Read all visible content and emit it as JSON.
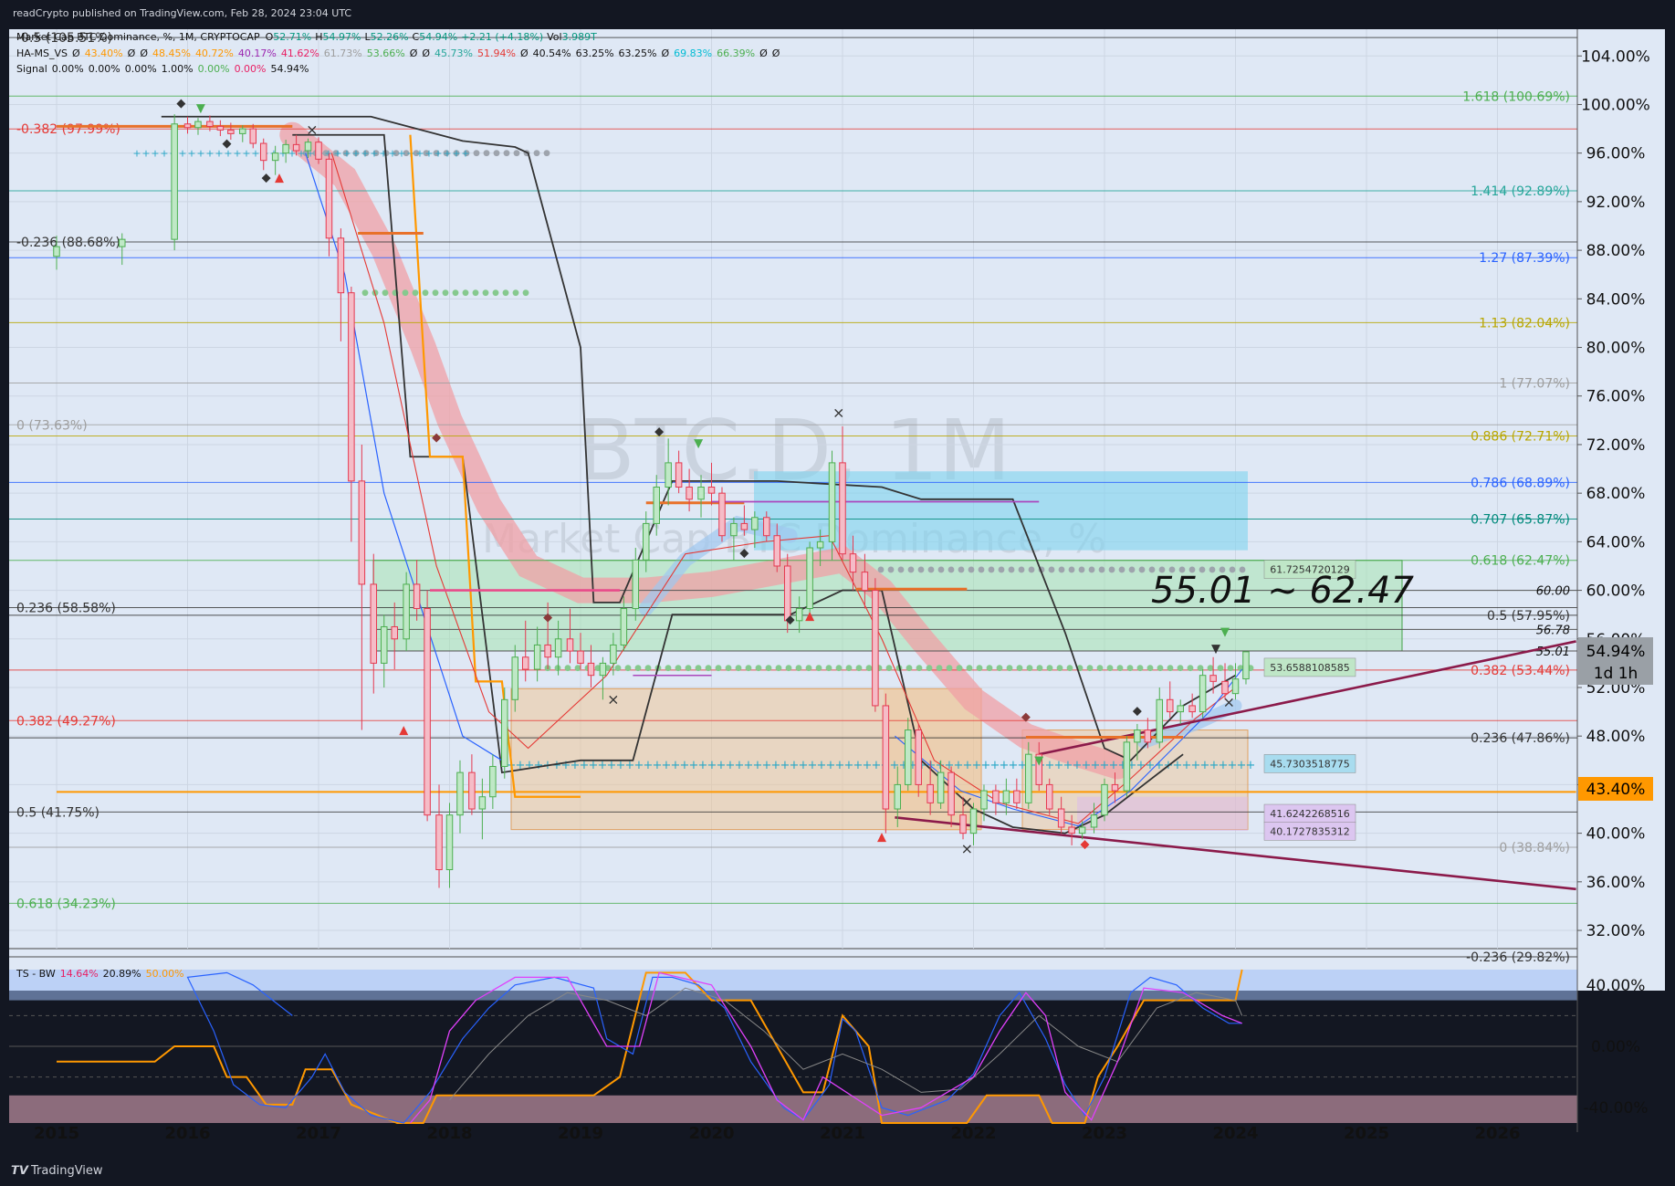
{
  "header": {
    "publisher": "readCrypto published on TradingView.com, Feb 28, 2024 23:04 UTC",
    "symbol_line": "Market Cap BTC Dominance, %, 1M, CRYPTOCAP",
    "ohlc": {
      "o_label": "O",
      "o": "52.71%",
      "h_label": "H",
      "h": "54.97%",
      "l_label": "L",
      "l": "52.26%",
      "c_label": "C",
      "c": "54.94%",
      "chg": "+2.21 (+4.18%)",
      "vol_label": "Vol",
      "vol": "3.989T"
    },
    "ind1_name": "HA-MS_VS",
    "ind1_values": [
      "Ø",
      "43.40%",
      "Ø",
      "Ø",
      "48.45%",
      "40.72%",
      "40.17%",
      "41.62%",
      "61.73%",
      "53.66%",
      "Ø",
      "Ø",
      "45.73%",
      "51.94%",
      "Ø",
      "40.54%",
      "63.25%",
      "63.25%",
      "Ø",
      "69.83%",
      "66.39%",
      "Ø",
      "Ø"
    ],
    "ind2_name": "Signal",
    "ind2_values": [
      "0.00%",
      "0.00%",
      "0.00%",
      "1.00%",
      "0.00%",
      "0.00%",
      "54.94%"
    ],
    "osc_label": "TS - BW",
    "osc_values": [
      "14.64%",
      "20.89%",
      "50.00%"
    ]
  },
  "watermark": {
    "ticker": "BTC.D, 1M",
    "name": "Market Cap BTC Dominance, %"
  },
  "chart_data": {
    "type": "candlestick",
    "symbol": "BTC.D",
    "interval": "1M",
    "y_unit": "%",
    "ylim": [
      30.5,
      106.2
    ],
    "x_ticks": [
      "2015",
      "2016",
      "2017",
      "2018",
      "2019",
      "2020",
      "2021",
      "2022",
      "2023",
      "2024",
      "2025",
      "2026"
    ],
    "y_ticks": [
      "104.00%",
      "100.00%",
      "96.00%",
      "92.00%",
      "88.00%",
      "84.00%",
      "80.00%",
      "76.00%",
      "72.00%",
      "68.00%",
      "64.00%",
      "60.00%",
      "56.00%",
      "52.00%",
      "48.00%",
      "44.00%",
      "40.00%",
      "36.00%",
      "32.00%"
    ],
    "current_price": {
      "value": 54.94,
      "label": "54.94%",
      "countdown": "1d 1h"
    },
    "price_tag_2": {
      "value": 43.4,
      "label": "43.40%"
    },
    "annotation_range": "55.01 ~ 62.47",
    "fib_right": [
      {
        "label": "1.618 (100.69%)",
        "value": 100.69,
        "color": "#4caf50"
      },
      {
        "label": "1.414 (92.89%)",
        "value": 92.89,
        "color": "#26a69a"
      },
      {
        "label": "1.27 (87.39%)",
        "value": 87.39,
        "color": "#2962ff"
      },
      {
        "label": "1.13 (82.04%)",
        "value": 82.04,
        "color": "#b8a600"
      },
      {
        "label": "1 (77.07%)",
        "value": 77.07,
        "color": "#9e9e9e"
      },
      {
        "label": "0.886 (72.71%)",
        "value": 72.71,
        "color": "#b8a600"
      },
      {
        "label": "0.786 (68.89%)",
        "value": 68.89,
        "color": "#2962ff"
      },
      {
        "label": "0.707 (65.87%)",
        "value": 65.87,
        "color": "#00897b"
      },
      {
        "label": "0.618 (62.47%)",
        "value": 62.47,
        "color": "#4caf50"
      },
      {
        "label": "0.5 (57.95%)",
        "value": 57.95,
        "color": "#333333"
      },
      {
        "label": "0.382 (53.44%)",
        "value": 53.44,
        "color": "#e53935"
      },
      {
        "label": "0.236 (47.86%)",
        "value": 47.86,
        "color": "#333333"
      },
      {
        "label": "0 (38.84%)",
        "value": 38.84,
        "color": "#9e9e9e"
      },
      {
        "label": "-0.236 (29.82%)",
        "value": 29.82,
        "color": "#333333"
      }
    ],
    "fib_left": [
      {
        "label": "-0.5 (105.51%)",
        "value": 105.51,
        "color": "#333333"
      },
      {
        "label": "-0.382 (97.99%)",
        "value": 97.99,
        "color": "#e53935"
      },
      {
        "label": "-0.236 (88.68%)",
        "value": 88.68,
        "color": "#333333"
      },
      {
        "label": "0 (73.63%)",
        "value": 73.63,
        "color": "#9e9e9e"
      },
      {
        "label": "0.236 (58.58%)",
        "value": 58.58,
        "color": "#333333"
      },
      {
        "label": "0.382 (49.27%)",
        "value": 49.27,
        "color": "#e53935"
      },
      {
        "label": "0.5 (41.75%)",
        "value": 41.75,
        "color": "#333333"
      },
      {
        "label": "0.618 (34.23%)",
        "value": 34.23,
        "color": "#4caf50"
      }
    ],
    "level_labels": [
      {
        "label": "60.00",
        "value": 60.0
      },
      {
        "label": "56.78",
        "value": 56.78
      },
      {
        "label": "55.01",
        "value": 55.01
      }
    ],
    "box_labels": [
      {
        "label": "61.7254720129",
        "value": 61.7254720129,
        "color": "#bfe6c7"
      },
      {
        "label": "53.6588108585",
        "value": 53.6588108585,
        "color": "#bfe6c7"
      },
      {
        "label": "45.7303518775",
        "value": 45.7303518775,
        "color": "#a8dcef"
      },
      {
        "label": "41.6242268516",
        "value": 41.6242268516,
        "color": "#dcc6f0"
      },
      {
        "label": "40.1727835312",
        "value": 40.1727835312,
        "color": "#dcc6f0"
      }
    ],
    "candles": [
      {
        "t": 2015.0,
        "o": 87.5,
        "h": 89.2,
        "l": 86.4,
        "c": 88.3
      },
      {
        "t": 2015.5,
        "o": 88.3,
        "h": 89.4,
        "l": 86.8,
        "c": 88.9
      },
      {
        "t": 2015.9,
        "o": 88.9,
        "h": 99.2,
        "l": 88.0,
        "c": 98.4
      },
      {
        "t": 2016.0,
        "o": 98.4,
        "h": 99.0,
        "l": 97.6,
        "c": 98.1
      },
      {
        "t": 2016.08,
        "o": 98.1,
        "h": 98.9,
        "l": 97.5,
        "c": 98.6
      },
      {
        "t": 2016.17,
        "o": 98.6,
        "h": 99.1,
        "l": 97.8,
        "c": 98.2
      },
      {
        "t": 2016.25,
        "o": 98.2,
        "h": 98.7,
        "l": 97.4,
        "c": 97.9
      },
      {
        "t": 2016.33,
        "o": 97.9,
        "h": 98.5,
        "l": 97.1,
        "c": 97.6
      },
      {
        "t": 2016.42,
        "o": 97.6,
        "h": 98.3,
        "l": 96.9,
        "c": 98.0
      },
      {
        "t": 2016.5,
        "o": 98.0,
        "h": 98.4,
        "l": 96.4,
        "c": 96.8
      },
      {
        "t": 2016.58,
        "o": 96.8,
        "h": 97.2,
        "l": 94.6,
        "c": 95.4
      },
      {
        "t": 2016.67,
        "o": 95.4,
        "h": 96.6,
        "l": 94.2,
        "c": 96.0
      },
      {
        "t": 2016.75,
        "o": 96.0,
        "h": 97.1,
        "l": 95.2,
        "c": 96.7
      },
      {
        "t": 2016.83,
        "o": 96.7,
        "h": 97.5,
        "l": 95.8,
        "c": 96.2
      },
      {
        "t": 2016.92,
        "o": 96.2,
        "h": 97.2,
        "l": 95.6,
        "c": 96.9
      },
      {
        "t": 2017.0,
        "o": 96.9,
        "h": 97.3,
        "l": 95.1,
        "c": 95.5
      },
      {
        "t": 2017.08,
        "o": 95.5,
        "h": 96.0,
        "l": 87.5,
        "c": 89.0
      },
      {
        "t": 2017.17,
        "o": 89.0,
        "h": 89.8,
        "l": 80.5,
        "c": 84.5
      },
      {
        "t": 2017.25,
        "o": 84.5,
        "h": 85.0,
        "l": 64.0,
        "c": 69.0
      },
      {
        "t": 2017.33,
        "o": 69.0,
        "h": 72.0,
        "l": 48.5,
        "c": 60.5
      },
      {
        "t": 2017.42,
        "o": 60.5,
        "h": 63.0,
        "l": 51.5,
        "c": 54.0
      },
      {
        "t": 2017.5,
        "o": 54.0,
        "h": 58.0,
        "l": 52.0,
        "c": 57.0
      },
      {
        "t": 2017.58,
        "o": 57.0,
        "h": 59.0,
        "l": 53.5,
        "c": 56.0
      },
      {
        "t": 2017.67,
        "o": 56.0,
        "h": 61.5,
        "l": 55.0,
        "c": 60.5
      },
      {
        "t": 2017.75,
        "o": 60.5,
        "h": 62.5,
        "l": 57.5,
        "c": 58.5
      },
      {
        "t": 2017.83,
        "o": 58.5,
        "h": 60.0,
        "l": 41.0,
        "c": 41.5
      },
      {
        "t": 2017.92,
        "o": 41.5,
        "h": 44.0,
        "l": 35.5,
        "c": 37.0
      },
      {
        "t": 2018.0,
        "o": 37.0,
        "h": 42.5,
        "l": 35.5,
        "c": 41.5
      },
      {
        "t": 2018.08,
        "o": 41.5,
        "h": 46.0,
        "l": 40.0,
        "c": 45.0
      },
      {
        "t": 2018.17,
        "o": 45.0,
        "h": 46.5,
        "l": 41.5,
        "c": 42.0
      },
      {
        "t": 2018.25,
        "o": 42.0,
        "h": 44.5,
        "l": 39.5,
        "c": 43.0
      },
      {
        "t": 2018.33,
        "o": 43.0,
        "h": 46.5,
        "l": 42.0,
        "c": 45.5
      },
      {
        "t": 2018.42,
        "o": 45.5,
        "h": 52.0,
        "l": 44.5,
        "c": 51.0
      },
      {
        "t": 2018.5,
        "o": 51.0,
        "h": 55.5,
        "l": 50.0,
        "c": 54.5
      },
      {
        "t": 2018.58,
        "o": 54.5,
        "h": 57.5,
        "l": 52.5,
        "c": 53.5
      },
      {
        "t": 2018.67,
        "o": 53.5,
        "h": 57.0,
        "l": 52.5,
        "c": 55.5
      },
      {
        "t": 2018.75,
        "o": 55.5,
        "h": 59.0,
        "l": 53.5,
        "c": 54.5
      },
      {
        "t": 2018.83,
        "o": 54.5,
        "h": 57.5,
        "l": 53.0,
        "c": 56.0
      },
      {
        "t": 2018.92,
        "o": 56.0,
        "h": 58.5,
        "l": 54.0,
        "c": 55.0
      },
      {
        "t": 2019.0,
        "o": 55.0,
        "h": 56.5,
        "l": 53.5,
        "c": 54.0
      },
      {
        "t": 2019.08,
        "o": 54.0,
        "h": 55.5,
        "l": 52.0,
        "c": 53.0
      },
      {
        "t": 2019.17,
        "o": 53.0,
        "h": 54.5,
        "l": 51.0,
        "c": 54.0
      },
      {
        "t": 2019.25,
        "o": 54.0,
        "h": 56.5,
        "l": 53.0,
        "c": 55.5
      },
      {
        "t": 2019.33,
        "o": 55.5,
        "h": 59.5,
        "l": 55.0,
        "c": 58.5
      },
      {
        "t": 2019.42,
        "o": 58.5,
        "h": 63.5,
        "l": 57.5,
        "c": 62.5
      },
      {
        "t": 2019.5,
        "o": 62.5,
        "h": 66.5,
        "l": 61.5,
        "c": 65.5
      },
      {
        "t": 2019.58,
        "o": 65.5,
        "h": 69.5,
        "l": 64.5,
        "c": 68.5
      },
      {
        "t": 2019.67,
        "o": 68.5,
        "h": 72.5,
        "l": 67.0,
        "c": 70.5
      },
      {
        "t": 2019.75,
        "o": 70.5,
        "h": 71.5,
        "l": 68.0,
        "c": 68.5
      },
      {
        "t": 2019.83,
        "o": 68.5,
        "h": 70.0,
        "l": 66.5,
        "c": 67.5
      },
      {
        "t": 2019.92,
        "o": 67.5,
        "h": 69.5,
        "l": 66.0,
        "c": 68.5
      },
      {
        "t": 2020.0,
        "o": 68.5,
        "h": 70.5,
        "l": 67.0,
        "c": 68.0
      },
      {
        "t": 2020.08,
        "o": 68.0,
        "h": 68.5,
        "l": 64.0,
        "c": 64.5
      },
      {
        "t": 2020.17,
        "o": 64.5,
        "h": 66.0,
        "l": 62.5,
        "c": 65.5
      },
      {
        "t": 2020.25,
        "o": 65.5,
        "h": 67.0,
        "l": 64.5,
        "c": 65.0
      },
      {
        "t": 2020.33,
        "o": 65.0,
        "h": 66.5,
        "l": 63.5,
        "c": 66.0
      },
      {
        "t": 2020.42,
        "o": 66.0,
        "h": 66.5,
        "l": 64.0,
        "c": 64.5
      },
      {
        "t": 2020.5,
        "o": 64.5,
        "h": 65.5,
        "l": 61.5,
        "c": 62.0
      },
      {
        "t": 2020.58,
        "o": 62.0,
        "h": 63.0,
        "l": 56.5,
        "c": 57.5
      },
      {
        "t": 2020.67,
        "o": 57.5,
        "h": 59.5,
        "l": 56.5,
        "c": 58.5
      },
      {
        "t": 2020.75,
        "o": 58.5,
        "h": 64.0,
        "l": 58.0,
        "c": 63.5
      },
      {
        "t": 2020.83,
        "o": 63.5,
        "h": 65.0,
        "l": 62.0,
        "c": 64.0
      },
      {
        "t": 2020.92,
        "o": 64.0,
        "h": 71.5,
        "l": 62.5,
        "c": 70.5
      },
      {
        "t": 2021.0,
        "o": 70.5,
        "h": 73.5,
        "l": 62.5,
        "c": 63.0
      },
      {
        "t": 2021.08,
        "o": 63.0,
        "h": 64.5,
        "l": 60.0,
        "c": 61.5
      },
      {
        "t": 2021.17,
        "o": 61.5,
        "h": 63.0,
        "l": 58.5,
        "c": 60.0
      },
      {
        "t": 2021.25,
        "o": 60.0,
        "h": 61.0,
        "l": 50.0,
        "c": 50.5
      },
      {
        "t": 2021.33,
        "o": 50.5,
        "h": 51.5,
        "l": 40.0,
        "c": 42.0
      },
      {
        "t": 2021.42,
        "o": 42.0,
        "h": 45.5,
        "l": 40.5,
        "c": 44.0
      },
      {
        "t": 2021.5,
        "o": 44.0,
        "h": 49.5,
        "l": 43.5,
        "c": 48.5
      },
      {
        "t": 2021.58,
        "o": 48.5,
        "h": 49.0,
        "l": 43.0,
        "c": 44.0
      },
      {
        "t": 2021.67,
        "o": 44.0,
        "h": 46.0,
        "l": 41.5,
        "c": 42.5
      },
      {
        "t": 2021.75,
        "o": 42.5,
        "h": 46.0,
        "l": 42.0,
        "c": 45.0
      },
      {
        "t": 2021.83,
        "o": 45.0,
        "h": 45.5,
        "l": 40.5,
        "c": 41.5
      },
      {
        "t": 2021.92,
        "o": 41.5,
        "h": 43.0,
        "l": 39.5,
        "c": 40.0
      },
      {
        "t": 2022.0,
        "o": 40.0,
        "h": 42.5,
        "l": 39.0,
        "c": 42.0
      },
      {
        "t": 2022.08,
        "o": 42.0,
        "h": 44.0,
        "l": 41.0,
        "c": 43.5
      },
      {
        "t": 2022.17,
        "o": 43.5,
        "h": 44.0,
        "l": 41.5,
        "c": 42.5
      },
      {
        "t": 2022.25,
        "o": 42.5,
        "h": 44.5,
        "l": 41.5,
        "c": 43.5
      },
      {
        "t": 2022.33,
        "o": 43.5,
        "h": 44.5,
        "l": 42.0,
        "c": 42.5
      },
      {
        "t": 2022.42,
        "o": 42.5,
        "h": 47.5,
        "l": 42.0,
        "c": 46.5
      },
      {
        "t": 2022.5,
        "o": 46.5,
        "h": 47.5,
        "l": 43.5,
        "c": 44.0
      },
      {
        "t": 2022.58,
        "o": 44.0,
        "h": 44.5,
        "l": 41.5,
        "c": 42.0
      },
      {
        "t": 2022.67,
        "o": 42.0,
        "h": 43.0,
        "l": 40.0,
        "c": 40.5
      },
      {
        "t": 2022.75,
        "o": 40.5,
        "h": 41.5,
        "l": 39.0,
        "c": 40.0
      },
      {
        "t": 2022.83,
        "o": 40.0,
        "h": 41.0,
        "l": 39.5,
        "c": 40.5
      },
      {
        "t": 2022.92,
        "o": 40.5,
        "h": 42.5,
        "l": 40.0,
        "c": 41.5
      },
      {
        "t": 2023.0,
        "o": 41.5,
        "h": 44.5,
        "l": 41.0,
        "c": 44.0
      },
      {
        "t": 2023.08,
        "o": 44.0,
        "h": 45.0,
        "l": 42.5,
        "c": 43.5
      },
      {
        "t": 2023.17,
        "o": 43.5,
        "h": 48.0,
        "l": 43.0,
        "c": 47.5
      },
      {
        "t": 2023.25,
        "o": 47.5,
        "h": 49.0,
        "l": 46.0,
        "c": 48.5
      },
      {
        "t": 2023.33,
        "o": 48.5,
        "h": 49.5,
        "l": 47.0,
        "c": 47.5
      },
      {
        "t": 2023.42,
        "o": 47.5,
        "h": 52.0,
        "l": 47.0,
        "c": 51.0
      },
      {
        "t": 2023.5,
        "o": 51.0,
        "h": 52.5,
        "l": 49.5,
        "c": 50.0
      },
      {
        "t": 2023.58,
        "o": 50.0,
        "h": 51.0,
        "l": 49.0,
        "c": 50.5
      },
      {
        "t": 2023.67,
        "o": 50.5,
        "h": 51.5,
        "l": 49.5,
        "c": 50.0
      },
      {
        "t": 2023.75,
        "o": 50.0,
        "h": 53.5,
        "l": 49.5,
        "c": 53.0
      },
      {
        "t": 2023.83,
        "o": 53.0,
        "h": 54.5,
        "l": 51.5,
        "c": 52.5
      },
      {
        "t": 2023.92,
        "o": 52.5,
        "h": 54.0,
        "l": 51.0,
        "c": 51.5
      },
      {
        "t": 2024.0,
        "o": 51.5,
        "h": 54.0,
        "l": 51.0,
        "c": 52.7
      },
      {
        "t": 2024.08,
        "o": 52.71,
        "h": 54.97,
        "l": 52.26,
        "c": 54.94
      }
    ],
    "oscillator": {
      "ylim": [
        -50,
        50
      ],
      "y_ticks": [
        "40.00%",
        "0.00%",
        "-40.00%"
      ]
    }
  },
  "footer": {
    "brand": "TradingView"
  }
}
